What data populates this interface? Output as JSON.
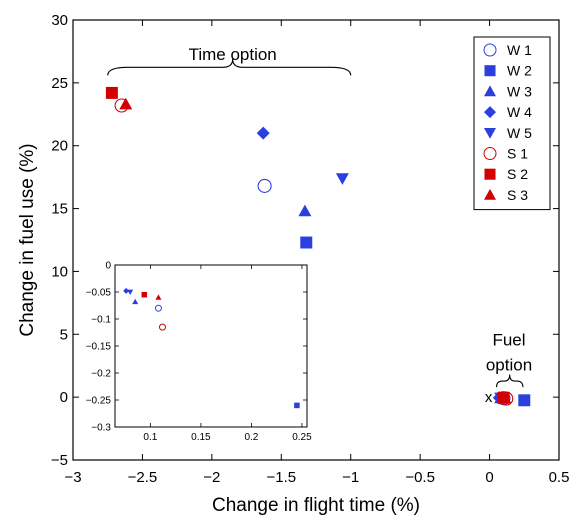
{
  "chart_data": [
    {
      "type": "scatter",
      "xlabel": "Change in flight time (%)",
      "ylabel": "Change in fuel use (%)",
      "xlim": [
        -3,
        0.5
      ],
      "ylim": [
        -5,
        30
      ],
      "xticks": [
        -3,
        -2.5,
        -2,
        -1.5,
        -1,
        -0.5,
        0,
        0.5
      ],
      "yticks": [
        -5,
        0,
        5,
        10,
        15,
        20,
        25,
        30
      ],
      "xtick_labels": [
        "−3",
        "−2.5",
        "−2",
        "−1.5",
        "−1",
        "−0.5",
        "0",
        "0.5"
      ],
      "ytick_labels": [
        "−5",
        "0",
        "5",
        "10",
        "15",
        "20",
        "25",
        "30"
      ],
      "grid": false,
      "legend_position": "top-right",
      "annotations": [
        {
          "text": "Time option",
          "x": -1.85,
          "y": 27.3
        },
        {
          "text": "Fuel",
          "x": 0.14,
          "y": 4.6
        },
        {
          "text": "option",
          "x": 0.14,
          "y": 2.6
        },
        {
          "text": "x",
          "x": 0.02,
          "y": 0
        }
      ],
      "series": [
        {
          "name": "W1",
          "marker": "open-circle",
          "color": "#2b3fe0",
          "x": [
            -1.62,
            0.1
          ],
          "y": [
            16.8,
            -0.08
          ]
        },
        {
          "name": "W2",
          "marker": "square",
          "color": "#2b3fe0",
          "x": [
            -1.32,
            0.25
          ],
          "y": [
            12.3,
            -0.25
          ]
        },
        {
          "name": "W3",
          "marker": "triangle-up",
          "color": "#2b3fe0",
          "x": [
            -1.33,
            0.08
          ],
          "y": [
            14.8,
            -0.07
          ]
        },
        {
          "name": "W4",
          "marker": "diamond",
          "color": "#2b3fe0",
          "x": [
            -1.63,
            0.07
          ],
          "y": [
            21.0,
            -0.05
          ]
        },
        {
          "name": "W5",
          "marker": "triangle-down",
          "color": "#2b3fe0",
          "x": [
            -1.06,
            0.08
          ],
          "y": [
            17.4,
            -0.05
          ]
        },
        {
          "name": "S1",
          "marker": "open-circle",
          "color": "#d40000",
          "x": [
            -2.65,
            0.12
          ],
          "y": [
            23.2,
            -0.115
          ]
        },
        {
          "name": "S2",
          "marker": "square",
          "color": "#d40000",
          "x": [
            -2.72,
            0.1
          ],
          "y": [
            24.2,
            -0.055
          ]
        },
        {
          "name": "S3",
          "marker": "triangle-up",
          "color": "#d40000",
          "x": [
            -2.62,
            0.11
          ],
          "y": [
            23.3,
            -0.06
          ]
        }
      ]
    },
    {
      "type": "scatter",
      "xlim": [
        0.065,
        0.255
      ],
      "ylim": [
        -0.3,
        0
      ],
      "xticks": [
        0.1,
        0.15,
        0.2,
        0.25
      ],
      "yticks": [
        0,
        -0.05,
        -0.1,
        -0.15,
        -0.2,
        -0.25,
        -0.3
      ],
      "xtick_labels": [
        "0.1",
        "0.15",
        "0.2",
        "0.25"
      ],
      "ytick_labels": [
        "0",
        "−0.05",
        "−0.1",
        "−0.15",
        "−0.2",
        "−0.25",
        "−0.3"
      ],
      "grid": false,
      "series": [
        {
          "name": "W1",
          "marker": "open-circle",
          "color": "#2b3fe0",
          "x": [
            0.108
          ],
          "y": [
            -0.08
          ]
        },
        {
          "name": "W2",
          "marker": "square",
          "color": "#2b3fe0",
          "x": [
            0.245
          ],
          "y": [
            -0.26
          ]
        },
        {
          "name": "W3",
          "marker": "triangle-up",
          "color": "#2b3fe0",
          "x": [
            0.085
          ],
          "y": [
            -0.068
          ]
        },
        {
          "name": "W4",
          "marker": "diamond",
          "color": "#2b3fe0",
          "x": [
            0.076
          ],
          "y": [
            -0.048
          ]
        },
        {
          "name": "W5",
          "marker": "triangle-down",
          "color": "#2b3fe0",
          "x": [
            0.08
          ],
          "y": [
            -0.05
          ]
        },
        {
          "name": "S1",
          "marker": "open-circle",
          "color": "#d40000",
          "x": [
            0.112
          ],
          "y": [
            -0.115
          ]
        },
        {
          "name": "S2",
          "marker": "square",
          "color": "#d40000",
          "x": [
            0.094
          ],
          "y": [
            -0.055
          ]
        },
        {
          "name": "S3",
          "marker": "triangle-up",
          "color": "#d40000",
          "x": [
            0.108
          ],
          "y": [
            -0.06
          ]
        }
      ]
    }
  ],
  "legend": [
    {
      "label": "W 1",
      "marker": "open-circle",
      "color": "#2b3fe0"
    },
    {
      "label": "W 2",
      "marker": "square",
      "color": "#2b3fe0"
    },
    {
      "label": "W 3",
      "marker": "triangle-up",
      "color": "#2b3fe0"
    },
    {
      "label": "W 4",
      "marker": "diamond",
      "color": "#2b3fe0"
    },
    {
      "label": "W 5",
      "marker": "triangle-down",
      "color": "#2b3fe0"
    },
    {
      "label": "S 1",
      "marker": "open-circle",
      "color": "#d40000"
    },
    {
      "label": "S 2",
      "marker": "square",
      "color": "#d40000"
    },
    {
      "label": "S 3",
      "marker": "triangle-up",
      "color": "#d40000"
    }
  ]
}
